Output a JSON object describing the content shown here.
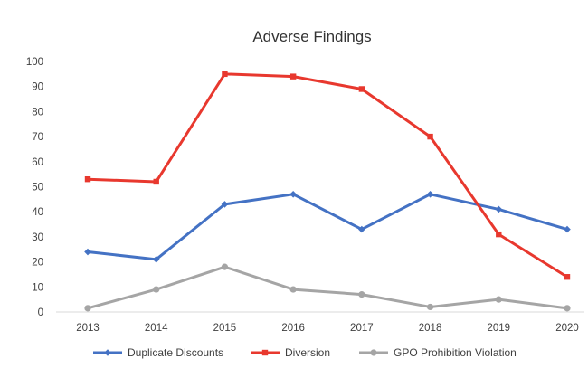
{
  "chart_data": {
    "type": "line",
    "title": "Adverse Findings",
    "xlabel": "",
    "ylabel": "",
    "categories": [
      "2013",
      "2014",
      "2015",
      "2016",
      "2017",
      "2018",
      "2019",
      "2020"
    ],
    "ylim": [
      0,
      100
    ],
    "yticks": [
      0,
      10,
      20,
      30,
      40,
      50,
      60,
      70,
      80,
      90,
      100
    ],
    "grid": false,
    "legend_position": "bottom",
    "series": [
      {
        "name": "Duplicate Discounts",
        "color": "#4472C4",
        "marker": "diamond",
        "values": [
          24,
          21,
          43,
          47,
          33,
          47,
          41,
          33
        ]
      },
      {
        "name": "Diversion",
        "color": "#E8382E",
        "marker": "square",
        "values": [
          53,
          52,
          95,
          94,
          89,
          70,
          31,
          14
        ]
      },
      {
        "name": "GPO Prohibition Violation",
        "color": "#A5A5A5",
        "marker": "circle",
        "values": [
          1.5,
          9,
          18,
          9,
          7,
          2,
          5,
          1.5
        ]
      }
    ]
  }
}
